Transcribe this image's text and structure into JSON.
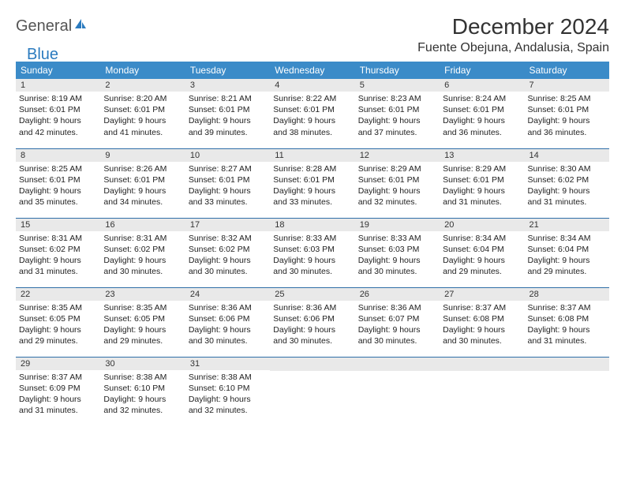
{
  "logo": {
    "word1": "General",
    "word2": "Blue"
  },
  "title": "December 2024",
  "location": "Fuente Obejuna, Andalusia, Spain",
  "colors": {
    "header_bg": "#3b8bc8",
    "header_fg": "#ffffff",
    "row_divider": "#2f6fa8",
    "daybar_bg": "#e9e9e9",
    "logo_accent": "#2b7bbf"
  },
  "day_headers": [
    "Sunday",
    "Monday",
    "Tuesday",
    "Wednesday",
    "Thursday",
    "Friday",
    "Saturday"
  ],
  "weeks": [
    [
      {
        "n": "1",
        "sr": "Sunrise: 8:19 AM",
        "ss": "Sunset: 6:01 PM",
        "d1": "Daylight: 9 hours",
        "d2": "and 42 minutes."
      },
      {
        "n": "2",
        "sr": "Sunrise: 8:20 AM",
        "ss": "Sunset: 6:01 PM",
        "d1": "Daylight: 9 hours",
        "d2": "and 41 minutes."
      },
      {
        "n": "3",
        "sr": "Sunrise: 8:21 AM",
        "ss": "Sunset: 6:01 PM",
        "d1": "Daylight: 9 hours",
        "d2": "and 39 minutes."
      },
      {
        "n": "4",
        "sr": "Sunrise: 8:22 AM",
        "ss": "Sunset: 6:01 PM",
        "d1": "Daylight: 9 hours",
        "d2": "and 38 minutes."
      },
      {
        "n": "5",
        "sr": "Sunrise: 8:23 AM",
        "ss": "Sunset: 6:01 PM",
        "d1": "Daylight: 9 hours",
        "d2": "and 37 minutes."
      },
      {
        "n": "6",
        "sr": "Sunrise: 8:24 AM",
        "ss": "Sunset: 6:01 PM",
        "d1": "Daylight: 9 hours",
        "d2": "and 36 minutes."
      },
      {
        "n": "7",
        "sr": "Sunrise: 8:25 AM",
        "ss": "Sunset: 6:01 PM",
        "d1": "Daylight: 9 hours",
        "d2": "and 36 minutes."
      }
    ],
    [
      {
        "n": "8",
        "sr": "Sunrise: 8:25 AM",
        "ss": "Sunset: 6:01 PM",
        "d1": "Daylight: 9 hours",
        "d2": "and 35 minutes."
      },
      {
        "n": "9",
        "sr": "Sunrise: 8:26 AM",
        "ss": "Sunset: 6:01 PM",
        "d1": "Daylight: 9 hours",
        "d2": "and 34 minutes."
      },
      {
        "n": "10",
        "sr": "Sunrise: 8:27 AM",
        "ss": "Sunset: 6:01 PM",
        "d1": "Daylight: 9 hours",
        "d2": "and 33 minutes."
      },
      {
        "n": "11",
        "sr": "Sunrise: 8:28 AM",
        "ss": "Sunset: 6:01 PM",
        "d1": "Daylight: 9 hours",
        "d2": "and 33 minutes."
      },
      {
        "n": "12",
        "sr": "Sunrise: 8:29 AM",
        "ss": "Sunset: 6:01 PM",
        "d1": "Daylight: 9 hours",
        "d2": "and 32 minutes."
      },
      {
        "n": "13",
        "sr": "Sunrise: 8:29 AM",
        "ss": "Sunset: 6:01 PM",
        "d1": "Daylight: 9 hours",
        "d2": "and 31 minutes."
      },
      {
        "n": "14",
        "sr": "Sunrise: 8:30 AM",
        "ss": "Sunset: 6:02 PM",
        "d1": "Daylight: 9 hours",
        "d2": "and 31 minutes."
      }
    ],
    [
      {
        "n": "15",
        "sr": "Sunrise: 8:31 AM",
        "ss": "Sunset: 6:02 PM",
        "d1": "Daylight: 9 hours",
        "d2": "and 31 minutes."
      },
      {
        "n": "16",
        "sr": "Sunrise: 8:31 AM",
        "ss": "Sunset: 6:02 PM",
        "d1": "Daylight: 9 hours",
        "d2": "and 30 minutes."
      },
      {
        "n": "17",
        "sr": "Sunrise: 8:32 AM",
        "ss": "Sunset: 6:02 PM",
        "d1": "Daylight: 9 hours",
        "d2": "and 30 minutes."
      },
      {
        "n": "18",
        "sr": "Sunrise: 8:33 AM",
        "ss": "Sunset: 6:03 PM",
        "d1": "Daylight: 9 hours",
        "d2": "and 30 minutes."
      },
      {
        "n": "19",
        "sr": "Sunrise: 8:33 AM",
        "ss": "Sunset: 6:03 PM",
        "d1": "Daylight: 9 hours",
        "d2": "and 30 minutes."
      },
      {
        "n": "20",
        "sr": "Sunrise: 8:34 AM",
        "ss": "Sunset: 6:04 PM",
        "d1": "Daylight: 9 hours",
        "d2": "and 29 minutes."
      },
      {
        "n": "21",
        "sr": "Sunrise: 8:34 AM",
        "ss": "Sunset: 6:04 PM",
        "d1": "Daylight: 9 hours",
        "d2": "and 29 minutes."
      }
    ],
    [
      {
        "n": "22",
        "sr": "Sunrise: 8:35 AM",
        "ss": "Sunset: 6:05 PM",
        "d1": "Daylight: 9 hours",
        "d2": "and 29 minutes."
      },
      {
        "n": "23",
        "sr": "Sunrise: 8:35 AM",
        "ss": "Sunset: 6:05 PM",
        "d1": "Daylight: 9 hours",
        "d2": "and 29 minutes."
      },
      {
        "n": "24",
        "sr": "Sunrise: 8:36 AM",
        "ss": "Sunset: 6:06 PM",
        "d1": "Daylight: 9 hours",
        "d2": "and 30 minutes."
      },
      {
        "n": "25",
        "sr": "Sunrise: 8:36 AM",
        "ss": "Sunset: 6:06 PM",
        "d1": "Daylight: 9 hours",
        "d2": "and 30 minutes."
      },
      {
        "n": "26",
        "sr": "Sunrise: 8:36 AM",
        "ss": "Sunset: 6:07 PM",
        "d1": "Daylight: 9 hours",
        "d2": "and 30 minutes."
      },
      {
        "n": "27",
        "sr": "Sunrise: 8:37 AM",
        "ss": "Sunset: 6:08 PM",
        "d1": "Daylight: 9 hours",
        "d2": "and 30 minutes."
      },
      {
        "n": "28",
        "sr": "Sunrise: 8:37 AM",
        "ss": "Sunset: 6:08 PM",
        "d1": "Daylight: 9 hours",
        "d2": "and 31 minutes."
      }
    ],
    [
      {
        "n": "29",
        "sr": "Sunrise: 8:37 AM",
        "ss": "Sunset: 6:09 PM",
        "d1": "Daylight: 9 hours",
        "d2": "and 31 minutes."
      },
      {
        "n": "30",
        "sr": "Sunrise: 8:38 AM",
        "ss": "Sunset: 6:10 PM",
        "d1": "Daylight: 9 hours",
        "d2": "and 32 minutes."
      },
      {
        "n": "31",
        "sr": "Sunrise: 8:38 AM",
        "ss": "Sunset: 6:10 PM",
        "d1": "Daylight: 9 hours",
        "d2": "and 32 minutes."
      },
      null,
      null,
      null,
      null
    ]
  ]
}
